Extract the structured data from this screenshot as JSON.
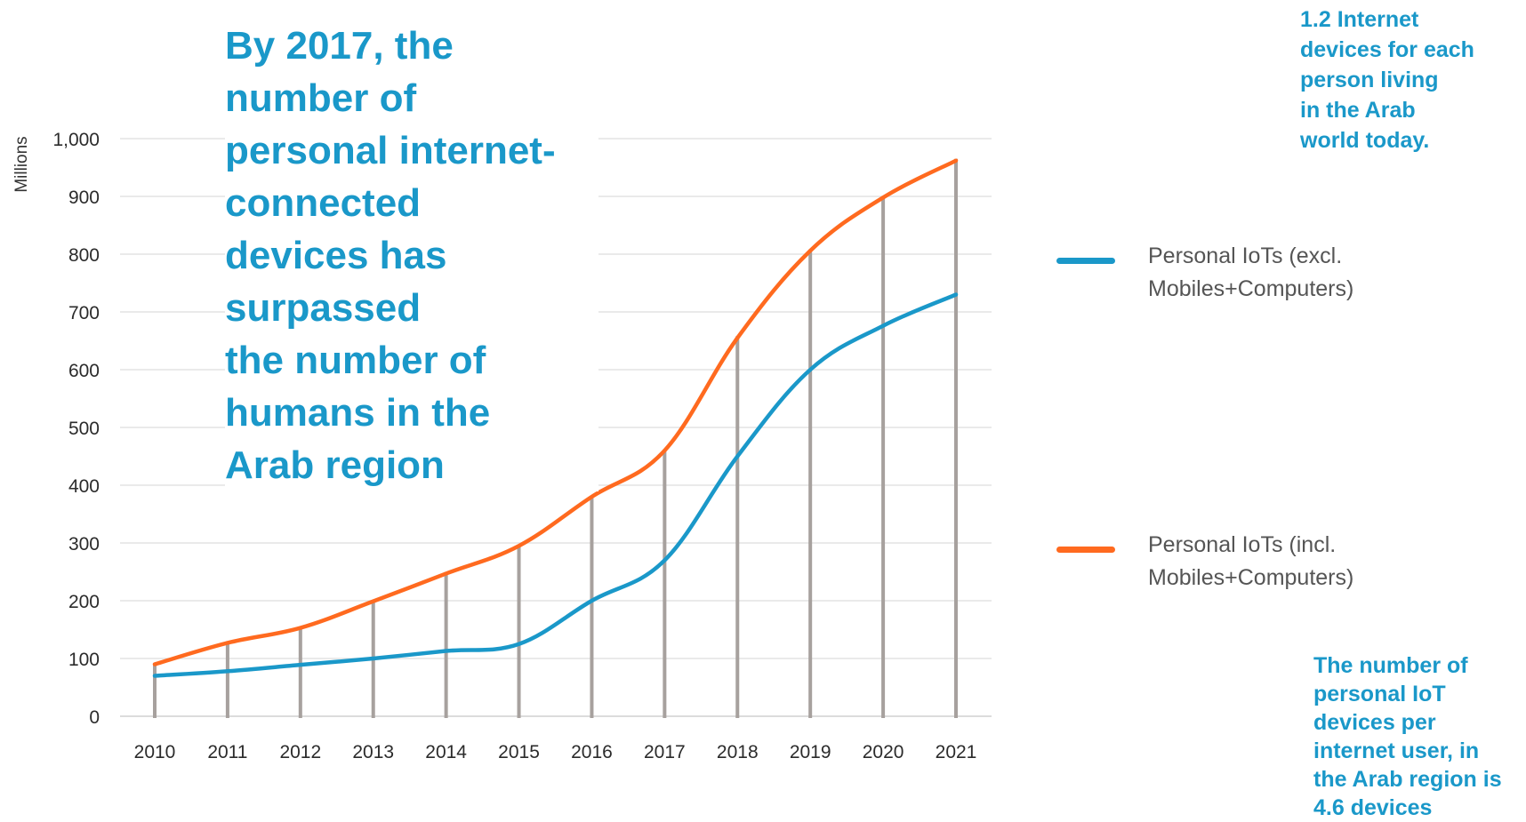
{
  "headline": "By 2017, the\nnumber of\npersonal internet-\nconnected\ndevices has\nsurpassed\nthe number of\nhumans in the\nArab region",
  "note_top": "1.2 Internet\ndevices for each\nperson living\nin the Arab\nworld today.",
  "note_bottom": "The number of\npersonal IoT\ndevices per\ninternet user, in\nthe Arab region is\n4.6 devices",
  "legend": [
    {
      "label": "Personal IoTs (excl.\nMobiles+Computers)",
      "color": "#1a98c9"
    },
    {
      "label": "Personal IoTs (incl.\nMobiles+Computers)",
      "color": "#ff6a1f"
    }
  ],
  "chart_data": {
    "type": "line",
    "ylabel": "Millions",
    "ylim": [
      0,
      1000
    ],
    "yticks": [
      "0",
      "100",
      "200",
      "300",
      "400",
      "500",
      "600",
      "700",
      "800",
      "900",
      "1,000"
    ],
    "grid": "horizontal",
    "categories": [
      "2010",
      "2011",
      "2012",
      "2013",
      "2014",
      "2015",
      "2016",
      "2017",
      "2018",
      "2019",
      "2020",
      "2021"
    ],
    "series": [
      {
        "name": "Personal IoTs (excl.\nMobiles+Computers)",
        "color": "#1a98c9",
        "values": [
          70,
          78,
          89,
          100,
          113,
          125,
          200,
          270,
          450,
          600,
          676,
          730
        ]
      },
      {
        "name": "Personal IoTs (incl.\nMobiles+Computers)",
        "color": "#ff6a1f",
        "values": [
          90,
          127,
          153,
          199,
          247,
          295,
          380,
          460,
          655,
          806,
          898,
          962
        ]
      }
    ],
    "drop_lines_color": "#a7a19e",
    "drop_lines_values": [
      92,
      130,
      155,
      200,
      250,
      297,
      382,
      462,
      658,
      808,
      900,
      965
    ]
  }
}
